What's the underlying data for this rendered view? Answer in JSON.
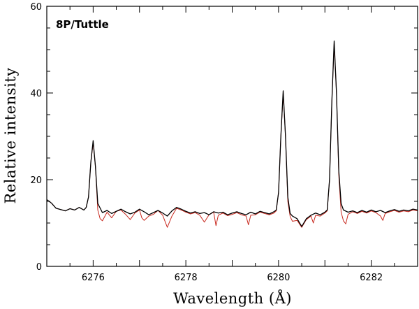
{
  "chart_data": {
    "type": "line",
    "annotation": "8P/Tuttle",
    "xlabel": "Wavelength (Å)",
    "ylabel": "Relative intensity",
    "xlim": [
      6275,
      6283
    ],
    "ylim": [
      0,
      60
    ],
    "x_ticks": [
      6276,
      6278,
      6280,
      6282
    ],
    "y_ticks": [
      0,
      20,
      40,
      60
    ],
    "grid": false,
    "colors": {
      "observed": "#000000",
      "model": "#c8281e"
    },
    "series": [
      {
        "id": "observed",
        "points": [
          [
            6275.0,
            15.4
          ],
          [
            6275.1,
            14.6
          ],
          [
            6275.2,
            13.4
          ],
          [
            6275.3,
            13.1
          ],
          [
            6275.4,
            12.8
          ],
          [
            6275.5,
            13.3
          ],
          [
            6275.6,
            13.0
          ],
          [
            6275.7,
            13.6
          ],
          [
            6275.8,
            13.0
          ],
          [
            6275.85,
            13.6
          ],
          [
            6275.9,
            16.0
          ],
          [
            6275.95,
            24.0
          ],
          [
            6276.0,
            29.0
          ],
          [
            6276.05,
            23.0
          ],
          [
            6276.1,
            14.5
          ],
          [
            6276.2,
            12.4
          ],
          [
            6276.3,
            12.9
          ],
          [
            6276.4,
            12.2
          ],
          [
            6276.5,
            12.7
          ],
          [
            6276.6,
            13.2
          ],
          [
            6276.7,
            12.6
          ],
          [
            6276.8,
            12.1
          ],
          [
            6276.9,
            12.5
          ],
          [
            6277.0,
            13.2
          ],
          [
            6277.1,
            12.6
          ],
          [
            6277.2,
            11.9
          ],
          [
            6277.3,
            12.4
          ],
          [
            6277.4,
            12.9
          ],
          [
            6277.5,
            12.3
          ],
          [
            6277.6,
            11.6
          ],
          [
            6277.7,
            12.8
          ],
          [
            6277.8,
            13.6
          ],
          [
            6277.9,
            13.2
          ],
          [
            6278.0,
            12.7
          ],
          [
            6278.1,
            12.3
          ],
          [
            6278.2,
            12.6
          ],
          [
            6278.3,
            12.2
          ],
          [
            6278.4,
            12.4
          ],
          [
            6278.5,
            11.9
          ],
          [
            6278.6,
            12.6
          ],
          [
            6278.7,
            12.3
          ],
          [
            6278.8,
            12.5
          ],
          [
            6278.9,
            11.9
          ],
          [
            6279.0,
            12.3
          ],
          [
            6279.1,
            12.6
          ],
          [
            6279.2,
            12.2
          ],
          [
            6279.3,
            11.9
          ],
          [
            6279.4,
            12.5
          ],
          [
            6279.5,
            12.1
          ],
          [
            6279.6,
            12.7
          ],
          [
            6279.7,
            12.4
          ],
          [
            6279.8,
            12.1
          ],
          [
            6279.9,
            12.6
          ],
          [
            6279.95,
            13.0
          ],
          [
            6280.0,
            17.0
          ],
          [
            6280.05,
            30.0
          ],
          [
            6280.1,
            40.5
          ],
          [
            6280.15,
            30.0
          ],
          [
            6280.2,
            16.0
          ],
          [
            6280.25,
            12.2
          ],
          [
            6280.3,
            11.6
          ],
          [
            6280.4,
            11.0
          ],
          [
            6280.5,
            9.2
          ],
          [
            6280.6,
            11.0
          ],
          [
            6280.7,
            11.8
          ],
          [
            6280.8,
            12.3
          ],
          [
            6280.9,
            11.9
          ],
          [
            6281.0,
            12.5
          ],
          [
            6281.05,
            13.0
          ],
          [
            6281.1,
            20.0
          ],
          [
            6281.15,
            38.0
          ],
          [
            6281.2,
            52.0
          ],
          [
            6281.25,
            40.0
          ],
          [
            6281.3,
            22.0
          ],
          [
            6281.35,
            14.5
          ],
          [
            6281.4,
            13.0
          ],
          [
            6281.5,
            12.5
          ],
          [
            6281.6,
            12.8
          ],
          [
            6281.7,
            12.4
          ],
          [
            6281.8,
            12.9
          ],
          [
            6281.9,
            12.5
          ],
          [
            6282.0,
            13.0
          ],
          [
            6282.1,
            12.6
          ],
          [
            6282.2,
            12.9
          ],
          [
            6282.3,
            12.4
          ],
          [
            6282.4,
            12.8
          ],
          [
            6282.5,
            13.1
          ],
          [
            6282.6,
            12.7
          ],
          [
            6282.7,
            13.0
          ],
          [
            6282.8,
            12.8
          ],
          [
            6282.9,
            13.2
          ],
          [
            6283.0,
            13.0
          ]
        ]
      },
      {
        "id": "model",
        "points": [
          [
            6275.0,
            15.4
          ],
          [
            6275.1,
            14.6
          ],
          [
            6275.2,
            13.4
          ],
          [
            6275.3,
            13.1
          ],
          [
            6275.4,
            12.8
          ],
          [
            6275.5,
            13.3
          ],
          [
            6275.6,
            13.0
          ],
          [
            6275.7,
            13.6
          ],
          [
            6275.8,
            13.0
          ],
          [
            6275.85,
            13.6
          ],
          [
            6275.9,
            16.0
          ],
          [
            6275.95,
            24.0
          ],
          [
            6276.0,
            28.5
          ],
          [
            6276.05,
            23.0
          ],
          [
            6276.1,
            13.0
          ],
          [
            6276.15,
            11.0
          ],
          [
            6276.2,
            10.5
          ],
          [
            6276.3,
            12.5
          ],
          [
            6276.4,
            11.2
          ],
          [
            6276.5,
            12.7
          ],
          [
            6276.6,
            13.0
          ],
          [
            6276.7,
            12.0
          ],
          [
            6276.8,
            10.8
          ],
          [
            6276.9,
            12.3
          ],
          [
            6277.0,
            13.0
          ],
          [
            6277.05,
            11.2
          ],
          [
            6277.1,
            10.6
          ],
          [
            6277.2,
            11.6
          ],
          [
            6277.3,
            12.0
          ],
          [
            6277.4,
            12.9
          ],
          [
            6277.5,
            11.8
          ],
          [
            6277.6,
            9.0
          ],
          [
            6277.7,
            11.6
          ],
          [
            6277.8,
            13.4
          ],
          [
            6277.9,
            13.0
          ],
          [
            6278.0,
            12.5
          ],
          [
            6278.1,
            12.1
          ],
          [
            6278.2,
            12.4
          ],
          [
            6278.3,
            11.8
          ],
          [
            6278.4,
            10.2
          ],
          [
            6278.5,
            11.9
          ],
          [
            6278.6,
            12.5
          ],
          [
            6278.65,
            9.4
          ],
          [
            6278.7,
            11.8
          ],
          [
            6278.8,
            12.3
          ],
          [
            6278.9,
            11.7
          ],
          [
            6279.0,
            12.0
          ],
          [
            6279.1,
            12.4
          ],
          [
            6279.2,
            11.9
          ],
          [
            6279.3,
            11.6
          ],
          [
            6279.35,
            9.6
          ],
          [
            6279.4,
            11.8
          ],
          [
            6279.5,
            11.9
          ],
          [
            6279.6,
            12.5
          ],
          [
            6279.7,
            12.2
          ],
          [
            6279.8,
            11.9
          ],
          [
            6279.9,
            12.3
          ],
          [
            6279.95,
            12.8
          ],
          [
            6280.0,
            17.0
          ],
          [
            6280.05,
            30.0
          ],
          [
            6280.1,
            40.0
          ],
          [
            6280.15,
            30.0
          ],
          [
            6280.2,
            15.0
          ],
          [
            6280.25,
            11.5
          ],
          [
            6280.3,
            10.4
          ],
          [
            6280.4,
            10.6
          ],
          [
            6280.5,
            9.0
          ],
          [
            6280.6,
            10.8
          ],
          [
            6280.7,
            11.6
          ],
          [
            6280.75,
            10.0
          ],
          [
            6280.8,
            11.8
          ],
          [
            6280.9,
            11.6
          ],
          [
            6281.0,
            12.3
          ],
          [
            6281.05,
            12.8
          ],
          [
            6281.1,
            20.0
          ],
          [
            6281.15,
            38.0
          ],
          [
            6281.2,
            51.5
          ],
          [
            6281.25,
            40.0
          ],
          [
            6281.3,
            21.0
          ],
          [
            6281.35,
            12.5
          ],
          [
            6281.4,
            10.5
          ],
          [
            6281.45,
            9.8
          ],
          [
            6281.5,
            12.0
          ],
          [
            6281.6,
            12.6
          ],
          [
            6281.7,
            12.2
          ],
          [
            6281.8,
            12.7
          ],
          [
            6281.9,
            12.3
          ],
          [
            6282.0,
            12.8
          ],
          [
            6282.1,
            12.4
          ],
          [
            6282.2,
            11.6
          ],
          [
            6282.25,
            10.6
          ],
          [
            6282.3,
            12.2
          ],
          [
            6282.4,
            12.6
          ],
          [
            6282.5,
            12.9
          ],
          [
            6282.6,
            12.5
          ],
          [
            6282.7,
            12.8
          ],
          [
            6282.8,
            12.6
          ],
          [
            6282.9,
            13.0
          ],
          [
            6283.0,
            12.8
          ]
        ]
      }
    ]
  }
}
